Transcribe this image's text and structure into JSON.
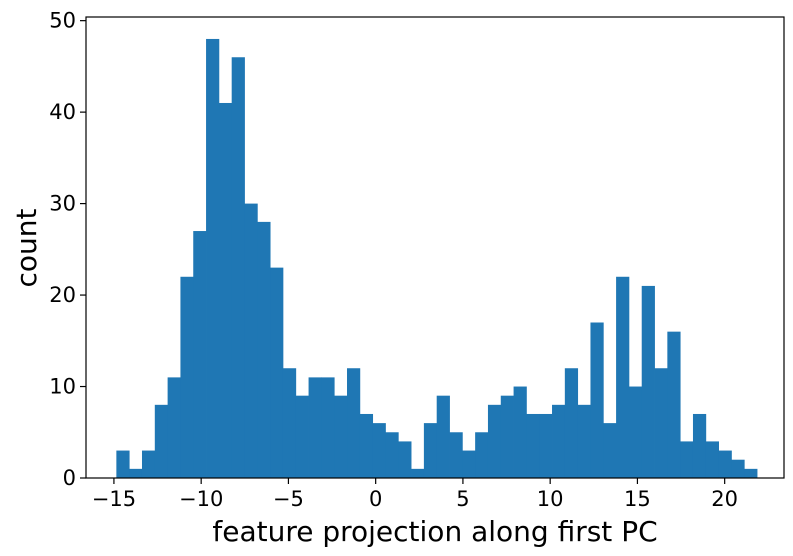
{
  "chart_data": {
    "type": "bar",
    "subtype": "histogram",
    "title": "",
    "xlabel": "feature projection along first PC",
    "ylabel": "count",
    "xlim": [
      -16.6,
      23.4
    ],
    "ylim": [
      0,
      50.4
    ],
    "grid": false,
    "legend": "none",
    "bar_color": "#1f77b4",
    "xticks": [
      -15,
      -10,
      -5,
      0,
      5,
      10,
      15,
      20
    ],
    "yticks": [
      0,
      10,
      20,
      30,
      40,
      50
    ],
    "bin_start": -14.86,
    "bin_width": 0.7343,
    "counts": [
      3,
      1,
      3,
      8,
      11,
      22,
      27,
      48,
      41,
      46,
      30,
      28,
      23,
      12,
      9,
      11,
      11,
      9,
      12,
      7,
      6,
      5,
      4,
      1,
      6,
      9,
      5,
      3,
      5,
      8,
      9,
      10,
      7,
      7,
      8,
      12,
      8,
      17,
      6,
      22,
      10,
      21,
      12,
      16,
      4,
      7,
      4,
      3,
      2,
      1
    ]
  }
}
